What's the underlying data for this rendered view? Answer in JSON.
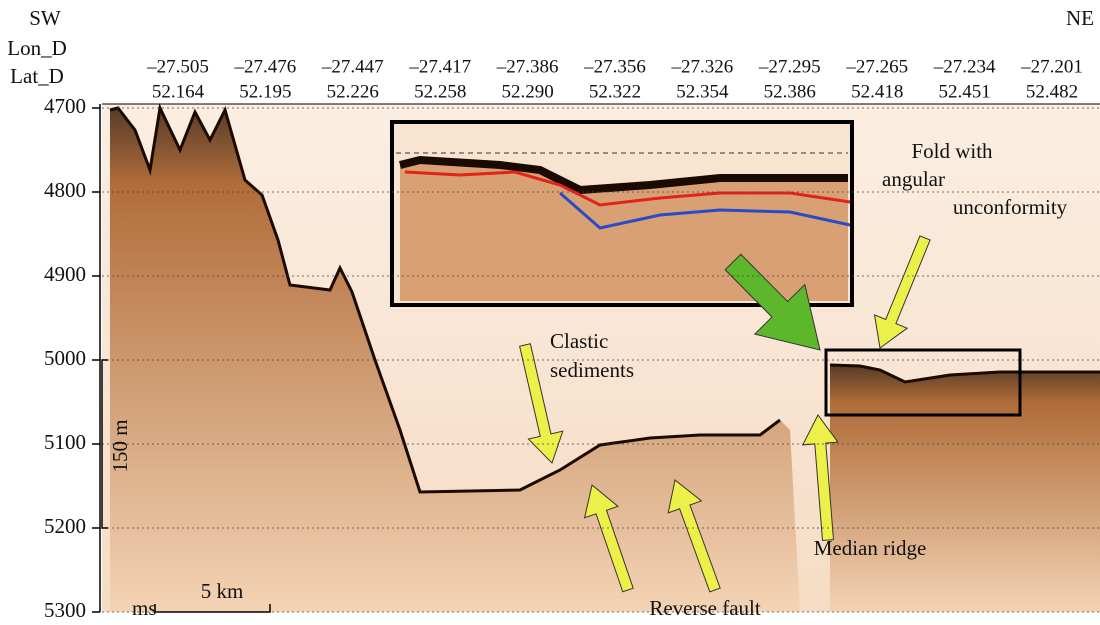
{
  "chart_data": {
    "type": "seismic-profile",
    "left_end": "SW",
    "right_end": "NE",
    "lon_label": "Lon_D",
    "lat_label": "Lat_D",
    "top_ticks": [
      {
        "lon": "–27.505",
        "lat": "52.164"
      },
      {
        "lon": "–27.476",
        "lat": "52.195"
      },
      {
        "lon": "–27.447",
        "lat": "52.226"
      },
      {
        "lon": "–27.417",
        "lat": "52.258"
      },
      {
        "lon": "–27.386",
        "lat": "52.290"
      },
      {
        "lon": "–27.356",
        "lat": "52.322"
      },
      {
        "lon": "–27.326",
        "lat": "52.354"
      },
      {
        "lon": "–27.295",
        "lat": "52.386"
      },
      {
        "lon": "–27.265",
        "lat": "52.418"
      },
      {
        "lon": "–27.234",
        "lat": "52.451"
      },
      {
        "lon": "–27.201",
        "lat": "52.482"
      }
    ],
    "ylim": [
      4700,
      5300
    ],
    "yticks": [
      4700,
      4800,
      4900,
      5000,
      5100,
      5200,
      5300
    ],
    "y_unit": "ms",
    "grid": true,
    "vertical_scale": "150 m",
    "horizontal_scale": "5 km",
    "annotations": {
      "clastic": [
        "Clastic",
        "sediments"
      ],
      "fold": [
        "Fold with",
        "angular",
        "unconformity"
      ],
      "median_ridge": "Median ridge",
      "reverse_fault": "Reverse fault"
    }
  }
}
